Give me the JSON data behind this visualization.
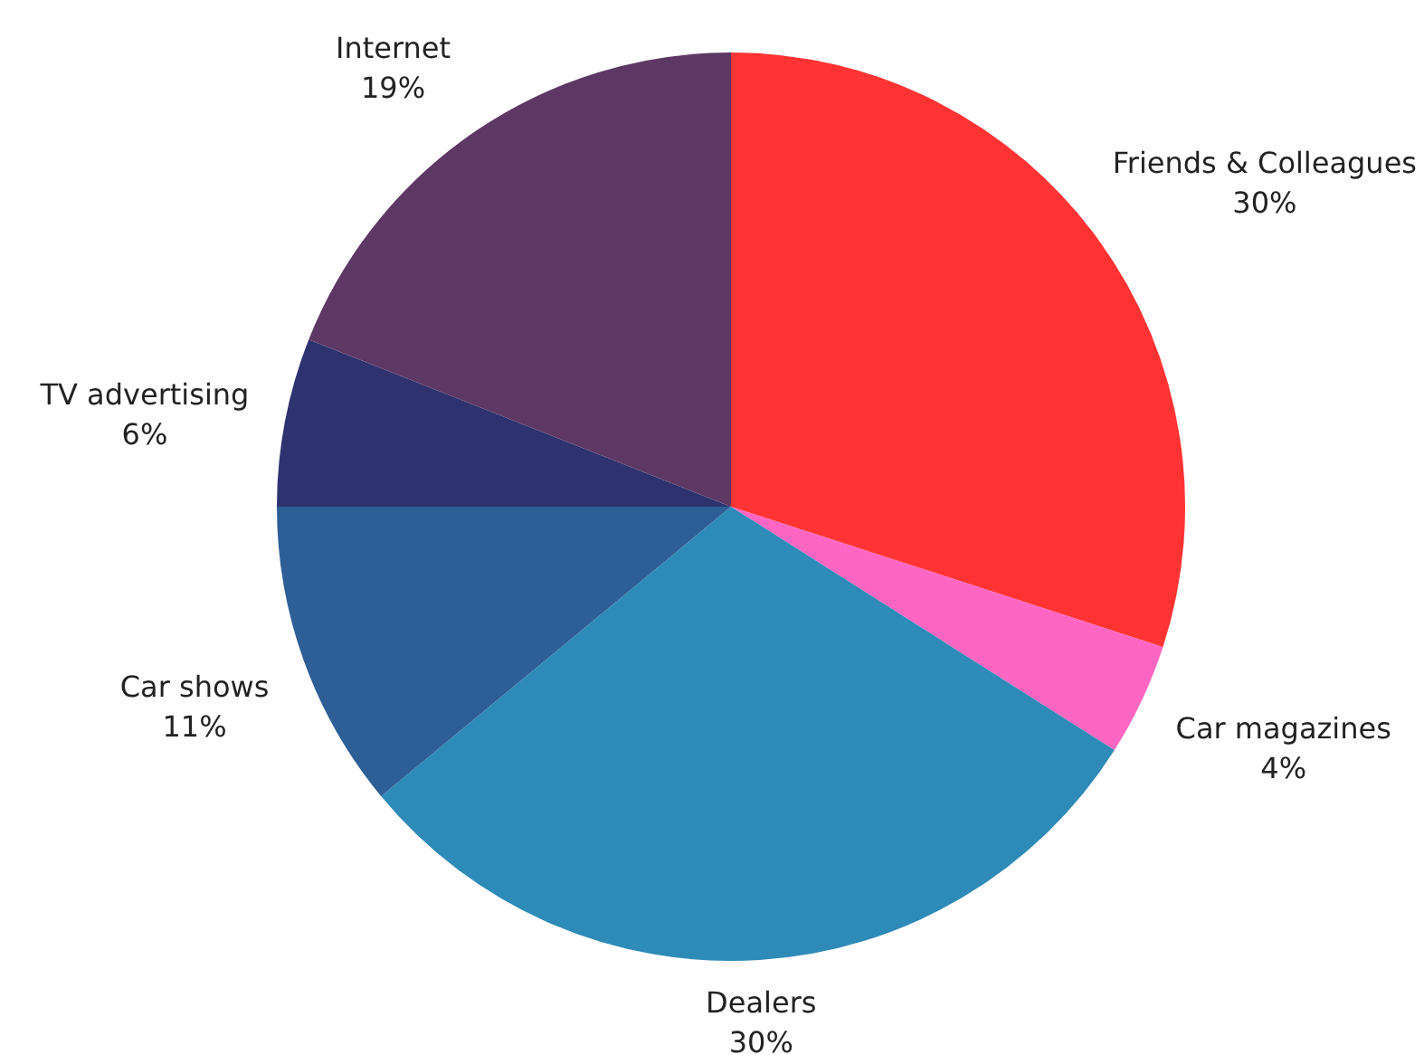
{
  "chart_data": {
    "type": "pie",
    "categories": [
      "Friends & Colleagues",
      "Car magazines",
      "Dealers",
      "Car shows",
      "TV advertising",
      "Internet"
    ],
    "values": [
      30,
      4,
      30,
      11,
      6,
      19
    ],
    "value_labels": [
      "30%",
      "4%",
      "30%",
      "11%",
      "6%",
      "19%"
    ],
    "colors": [
      "#ff3333",
      "#ff66c4",
      "#2e8bb8",
      "#2e5e96",
      "#2e3370",
      "#5e3864"
    ],
    "legend": false
  }
}
